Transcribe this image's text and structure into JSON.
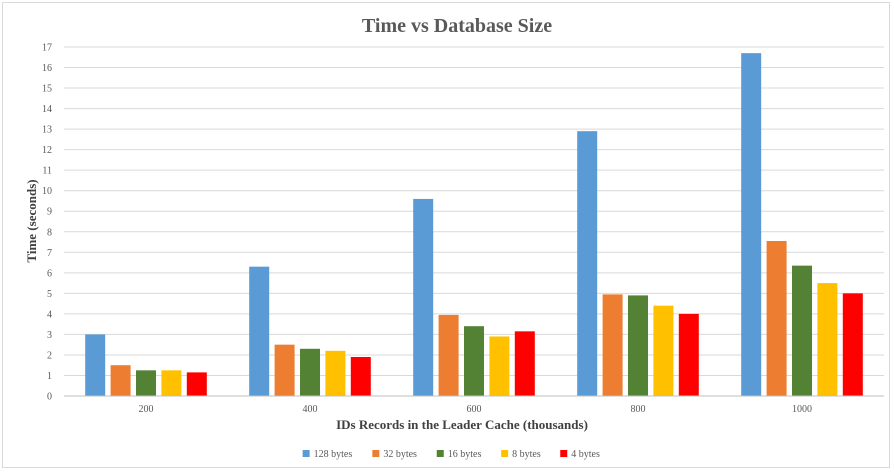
{
  "chart_data": {
    "type": "bar",
    "title": "Time vs Database Size",
    "xlabel": "IDs Records in the Leader Cache (thousands)",
    "ylabel": "Time (seconds)",
    "ylim": [
      0,
      17
    ],
    "yticks": [
      0,
      1,
      2,
      3,
      4,
      5,
      6,
      7,
      8,
      9,
      10,
      11,
      12,
      13,
      14,
      15,
      16,
      17
    ],
    "grid": true,
    "legend_position": "bottom",
    "categories": [
      "200",
      "400",
      "600",
      "800",
      "1000"
    ],
    "series": [
      {
        "name": "128 bytes",
        "color": "#5b9bd5",
        "values": [
          3.0,
          6.3,
          9.6,
          12.9,
          16.7
        ]
      },
      {
        "name": "32 bytes",
        "color": "#ed7d31",
        "values": [
          1.5,
          2.5,
          3.95,
          4.95,
          7.55
        ]
      },
      {
        "name": "16 bytes",
        "color": "#548235",
        "values": [
          1.25,
          2.3,
          3.4,
          4.9,
          6.35
        ]
      },
      {
        "name": "8 bytes",
        "color": "#ffc000",
        "values": [
          1.25,
          2.2,
          2.9,
          4.4,
          5.5
        ]
      },
      {
        "name": "4 bytes",
        "color": "#ff0000",
        "values": [
          1.15,
          1.9,
          3.15,
          4.0,
          5.0
        ]
      }
    ]
  }
}
